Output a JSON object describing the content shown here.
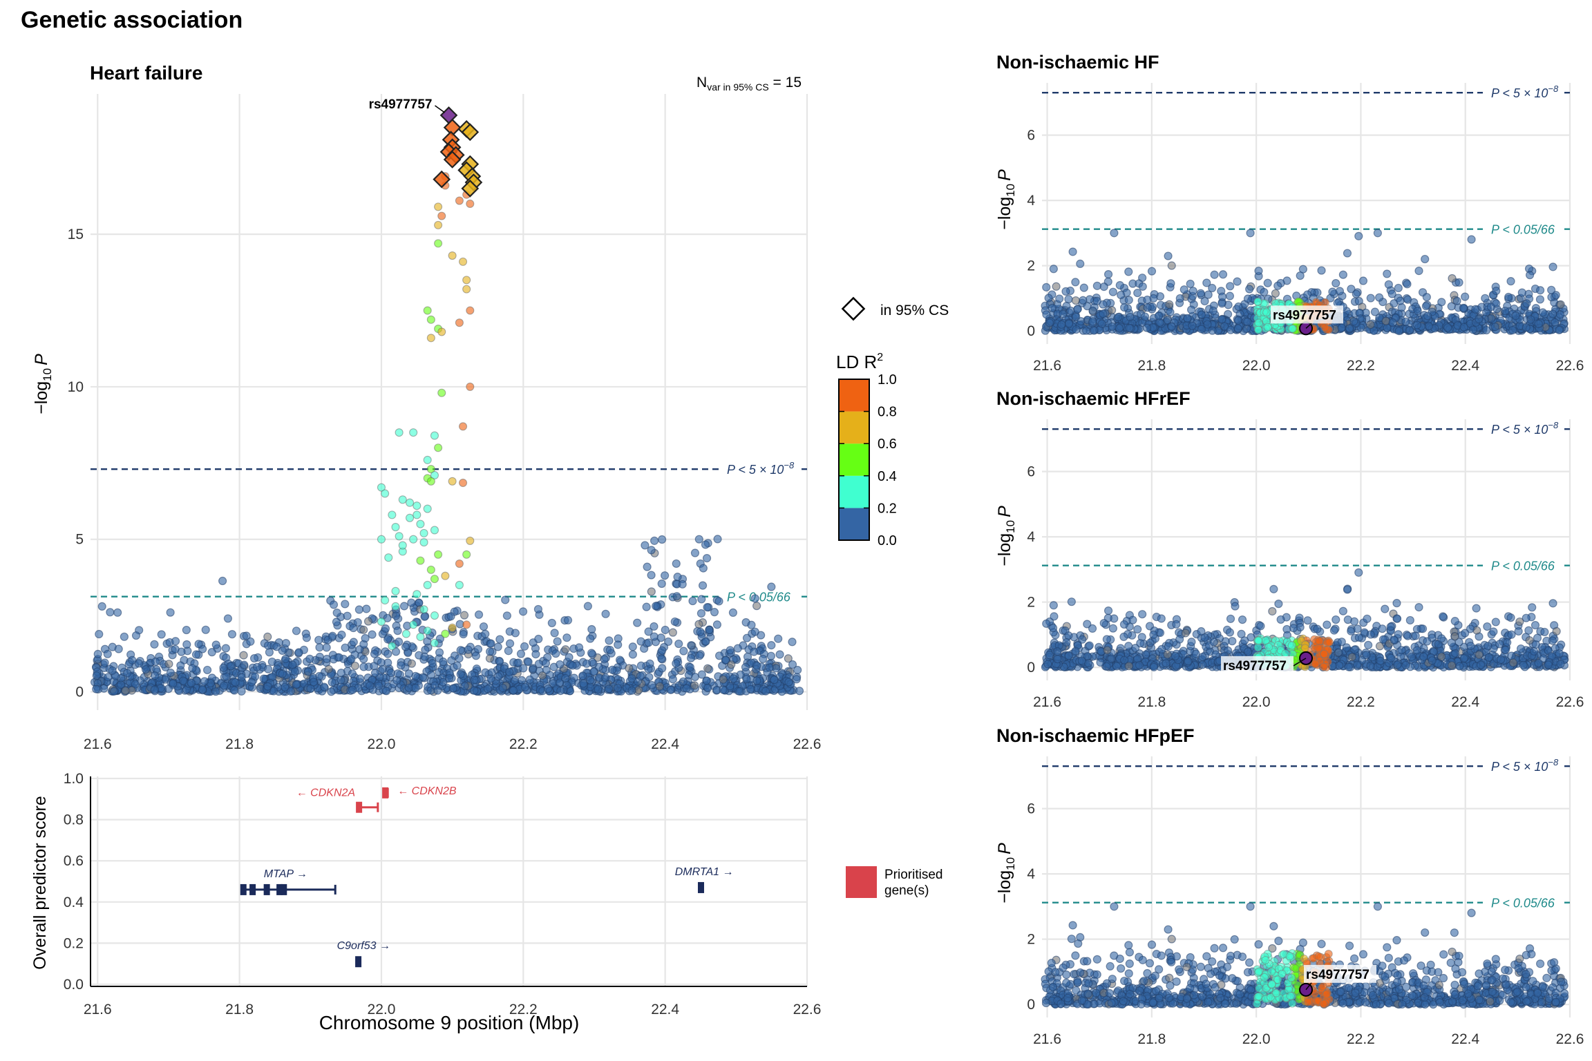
{
  "figure_title": "Genetic association",
  "colors": {
    "ld_0_0.2": "#3465a4",
    "ld_0.2_0.4": "#40ffd0",
    "ld_0.4_0.6": "#66ff14",
    "ld_0.6_0.8": "#e5b01a",
    "ld_0.8_1.0": "#ef6212",
    "lead_variant": "#6a1f8a",
    "gw_line": "#1f3a6a",
    "bonf_line": "#1f8a8a",
    "prioritised_gene": "#d9434b",
    "other_gene": "#1a2a5a",
    "grid": "#e6e6e6"
  },
  "legend": {
    "cs_label": "in 95% CS",
    "ld_title": "LD R",
    "ld_sup": "2",
    "ld_ticks": [
      "1.0",
      "0.8",
      "0.6",
      "0.4",
      "0.2",
      "0.0"
    ],
    "gene_label_line1": "Prioritised",
    "gene_label_line2": "gene(s)"
  },
  "thresholds": {
    "gw_label": "P < 5 × 10",
    "gw_exp": "−8",
    "bonf_label": "P < 0.05/66"
  },
  "lead_variant": "rs4977757",
  "ylabel_main": "−log",
  "ylabel_sub": "10",
  "ylabel_p": "P",
  "chart_data": [
    {
      "type": "scatter",
      "title": "Heart failure",
      "annotation_n": "N",
      "annotation_sub": "var in 95% CS",
      "annotation_val": " = 15",
      "xlim": [
        21.59,
        22.6
      ],
      "ylim": [
        -0.6,
        19.6
      ],
      "x_ticks": [
        "21.6",
        "21.8",
        "22.0",
        "22.2",
        "22.4",
        "22.6"
      ],
      "y_ticks": [
        "0",
        "5",
        "10",
        "15"
      ],
      "threshold_gw": 7.3,
      "threshold_bonf": 3.12,
      "lead": {
        "x": 22.095,
        "y": 18.9
      },
      "credible_set": [
        [
          22.095,
          18.9
        ],
        [
          22.1,
          18.5
        ],
        [
          22.12,
          18.45
        ],
        [
          22.125,
          18.35
        ],
        [
          22.098,
          18.1
        ],
        [
          22.1,
          17.85
        ],
        [
          22.095,
          17.7
        ],
        [
          22.105,
          17.6
        ],
        [
          22.1,
          17.45
        ],
        [
          22.125,
          17.3
        ],
        [
          22.12,
          17.1
        ],
        [
          22.128,
          16.9
        ],
        [
          22.085,
          16.8
        ],
        [
          22.13,
          16.7
        ],
        [
          22.125,
          16.5
        ]
      ],
      "colored_points": [
        [
          22.09,
          16.9,
          4
        ],
        [
          22.09,
          16.6,
          4
        ],
        [
          22.12,
          16.3,
          4
        ],
        [
          22.11,
          16.1,
          4
        ],
        [
          22.125,
          16.0,
          4
        ],
        [
          22.08,
          15.9,
          3
        ],
        [
          22.085,
          15.6,
          4
        ],
        [
          22.08,
          15.3,
          3
        ],
        [
          22.08,
          14.7,
          2
        ],
        [
          22.1,
          14.3,
          3
        ],
        [
          22.115,
          14.1,
          3
        ],
        [
          22.12,
          13.5,
          3
        ],
        [
          22.12,
          13.2,
          3
        ],
        [
          22.125,
          12.5,
          4
        ],
        [
          22.065,
          12.5,
          2
        ],
        [
          22.07,
          12.2,
          2
        ],
        [
          22.11,
          12.1,
          4
        ],
        [
          22.08,
          11.9,
          2
        ],
        [
          22.085,
          11.8,
          3
        ],
        [
          22.07,
          11.6,
          3
        ],
        [
          22.125,
          10.0,
          4
        ],
        [
          22.085,
          9.8,
          2
        ],
        [
          22.115,
          8.7,
          4
        ],
        [
          22.025,
          8.5,
          1
        ],
        [
          22.045,
          8.5,
          1
        ],
        [
          22.075,
          8.4,
          1
        ],
        [
          22.08,
          8.0,
          2
        ],
        [
          22.065,
          7.6,
          1
        ],
        [
          22.07,
          7.3,
          2
        ],
        [
          22.075,
          7.1,
          1
        ],
        [
          22.065,
          7.0,
          2
        ],
        [
          22.07,
          6.9,
          2
        ],
        [
          22.115,
          6.85,
          4
        ],
        [
          22.1,
          6.9,
          3
        ],
        [
          22.0,
          6.7,
          1
        ],
        [
          22.005,
          6.5,
          1
        ],
        [
          22.03,
          6.3,
          1
        ],
        [
          22.05,
          6.1,
          1
        ],
        [
          22.065,
          6.0,
          1
        ],
        [
          22.015,
          5.8,
          1
        ],
        [
          22.04,
          5.7,
          1
        ],
        [
          22.055,
          5.5,
          1
        ],
        [
          22.075,
          5.3,
          1
        ],
        [
          22.025,
          5.1,
          1
        ],
        [
          22.045,
          5.0,
          1
        ],
        [
          22.0,
          5.0,
          1
        ],
        [
          22.06,
          4.9,
          1
        ],
        [
          22.125,
          4.95,
          3
        ],
        [
          22.12,
          4.5,
          2
        ],
        [
          22.11,
          4.2,
          4
        ],
        [
          22.07,
          4.0,
          2
        ],
        [
          22.075,
          3.7,
          2
        ],
        [
          22.065,
          3.5,
          1
        ],
        [
          22.11,
          3.5,
          1
        ],
        [
          22.02,
          3.3,
          1
        ],
        [
          22.05,
          3.2,
          1
        ],
        [
          22.005,
          3.0,
          1
        ],
        [
          22.02,
          2.8,
          1
        ],
        [
          22.06,
          2.7,
          1
        ],
        [
          22.075,
          2.5,
          1
        ],
        [
          22.0,
          2.3,
          1
        ],
        [
          22.045,
          2.2,
          1
        ],
        [
          22.065,
          2.0,
          1
        ],
        [
          22.035,
          1.9,
          1
        ],
        [
          22.055,
          1.8,
          1
        ],
        [
          22.075,
          1.6,
          1
        ],
        [
          22.015,
          1.5,
          1
        ],
        [
          22.09,
          1.9,
          2
        ],
        [
          22.1,
          2.1,
          3
        ],
        [
          22.12,
          2.2,
          4
        ],
        [
          22.03,
          4.6,
          1
        ],
        [
          22.01,
          4.4,
          1
        ],
        [
          22.05,
          5.8,
          1
        ],
        [
          22.04,
          6.2,
          1
        ],
        [
          22.02,
          5.4,
          1
        ],
        [
          22.06,
          5.2,
          1
        ],
        [
          22.03,
          4.8,
          1
        ],
        [
          22.055,
          4.3,
          2
        ],
        [
          22.08,
          4.5,
          2
        ],
        [
          22.09,
          3.8,
          3
        ]
      ]
    },
    {
      "type": "scatter",
      "title": "Non-ischaemic HF",
      "xlim": [
        21.59,
        22.6
      ],
      "ylim": [
        -0.4,
        7.6
      ],
      "x_ticks": [
        "21.6",
        "21.8",
        "22.0",
        "22.2",
        "22.4",
        "22.6"
      ],
      "y_ticks": [
        "0",
        "2",
        "4",
        "6"
      ],
      "threshold_gw": 7.3,
      "threshold_bonf": 3.12,
      "lead": {
        "x": 22.095,
        "y": 0.08
      },
      "lead_label_pos": "above"
    },
    {
      "type": "scatter",
      "title": "Non-ischaemic HFrEF",
      "xlim": [
        21.59,
        22.6
      ],
      "ylim": [
        -0.4,
        7.6
      ],
      "x_ticks": [
        "21.6",
        "21.8",
        "22.0",
        "22.2",
        "22.4",
        "22.6"
      ],
      "y_ticks": [
        "0",
        "2",
        "4",
        "6"
      ],
      "threshold_gw": 7.3,
      "threshold_bonf": 3.12,
      "lead": {
        "x": 22.095,
        "y": 0.28
      },
      "lead_label_pos": "left"
    },
    {
      "type": "scatter",
      "title": "Non-ischaemic HFpEF",
      "xlim": [
        21.59,
        22.6
      ],
      "ylim": [
        -0.4,
        7.6
      ],
      "x_ticks": [
        "21.6",
        "21.8",
        "22.0",
        "22.2",
        "22.4",
        "22.6"
      ],
      "y_ticks": [
        "0",
        "2",
        "4",
        "6"
      ],
      "threshold_gw": 7.3,
      "threshold_bonf": 3.12,
      "lead": {
        "x": 22.095,
        "y": 0.45
      },
      "lead_label_pos": "right"
    },
    {
      "type": "gene_track",
      "ylabel": "Overall predictor score",
      "xlabel": "Chromosome 9 position (Mbp)",
      "xlim": [
        21.59,
        22.6
      ],
      "ylim": [
        -0.01,
        1.01
      ],
      "x_ticks": [
        "21.6",
        "21.8",
        "22.0",
        "22.2",
        "22.4",
        "22.6"
      ],
      "y_ticks": [
        "0.0",
        "0.2",
        "0.4",
        "0.6",
        "0.8",
        "1.0"
      ],
      "genes": [
        {
          "name": "CDKN2A",
          "label": "← CDKN2A",
          "start": 21.967,
          "end": 21.995,
          "score": 0.86,
          "prioritised": true,
          "exons": [
            21.968
          ]
        },
        {
          "name": "CDKN2B",
          "label": "← CDKN2B",
          "start": 22.002,
          "end": 22.009,
          "score": 0.93,
          "prioritised": true,
          "exons": [
            22.005
          ]
        },
        {
          "name": "MTAP",
          "label": "MTAP →",
          "start": 21.802,
          "end": 21.935,
          "score": 0.46,
          "prioritised": false,
          "exons": [
            21.805,
            21.818,
            21.838,
            21.856,
            21.862
          ]
        },
        {
          "name": "DMRTA1",
          "label": "DMRTA1 →",
          "start": 22.447,
          "end": 22.453,
          "score": 0.47,
          "prioritised": false,
          "exons": [
            22.45
          ]
        },
        {
          "name": "C9orf53",
          "label": "C9orf53 →",
          "start": 21.966,
          "end": 21.968,
          "score": 0.11,
          "prioritised": false,
          "exons": [
            21.967
          ]
        }
      ]
    }
  ]
}
